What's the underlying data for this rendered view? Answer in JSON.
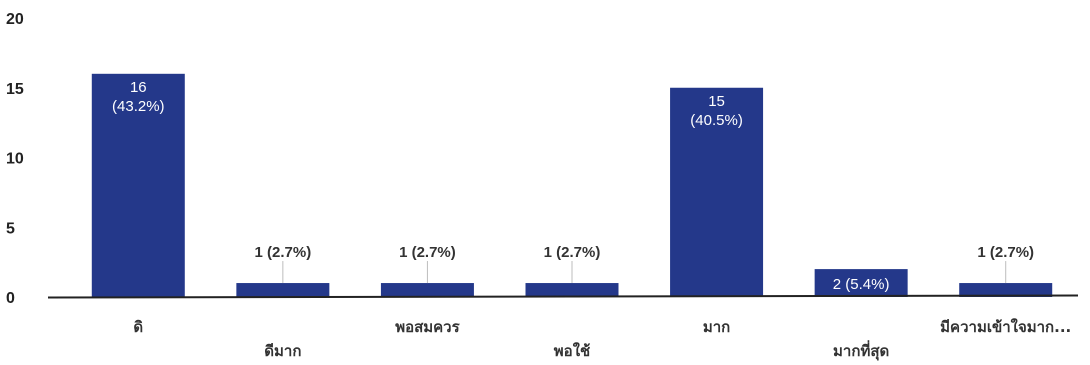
{
  "chart_data": {
    "type": "bar",
    "categories": [
      "ดิ",
      "ดีมาก",
      "พอสมควร",
      "พอใช้",
      "มาก",
      "มากที่สุด",
      "มีความเข้าใจมาก..."
    ],
    "values": [
      16,
      1,
      1,
      1,
      15,
      2,
      1
    ],
    "data_labels": [
      [
        "16",
        "(43.2%)"
      ],
      [
        "1 (2.7%)"
      ],
      [
        "1 (2.7%)"
      ],
      [
        "1 (2.7%)"
      ],
      [
        "15",
        "(40.5%)"
      ],
      [
        "2 (5.4%)"
      ],
      [
        "1 (2.7%)"
      ]
    ],
    "yticks": [
      0,
      5,
      10,
      15,
      20
    ],
    "ylim": [
      0,
      20
    ],
    "grid": false,
    "legend": "none",
    "title": "",
    "xlabel": "",
    "ylabel": "",
    "bar_color": "#24388a",
    "category_label_colors": [
      "#333333",
      "#2f6d4f",
      "#333333",
      "#222222",
      "#333333",
      "#2f7d5a",
      "#333333"
    ]
  }
}
